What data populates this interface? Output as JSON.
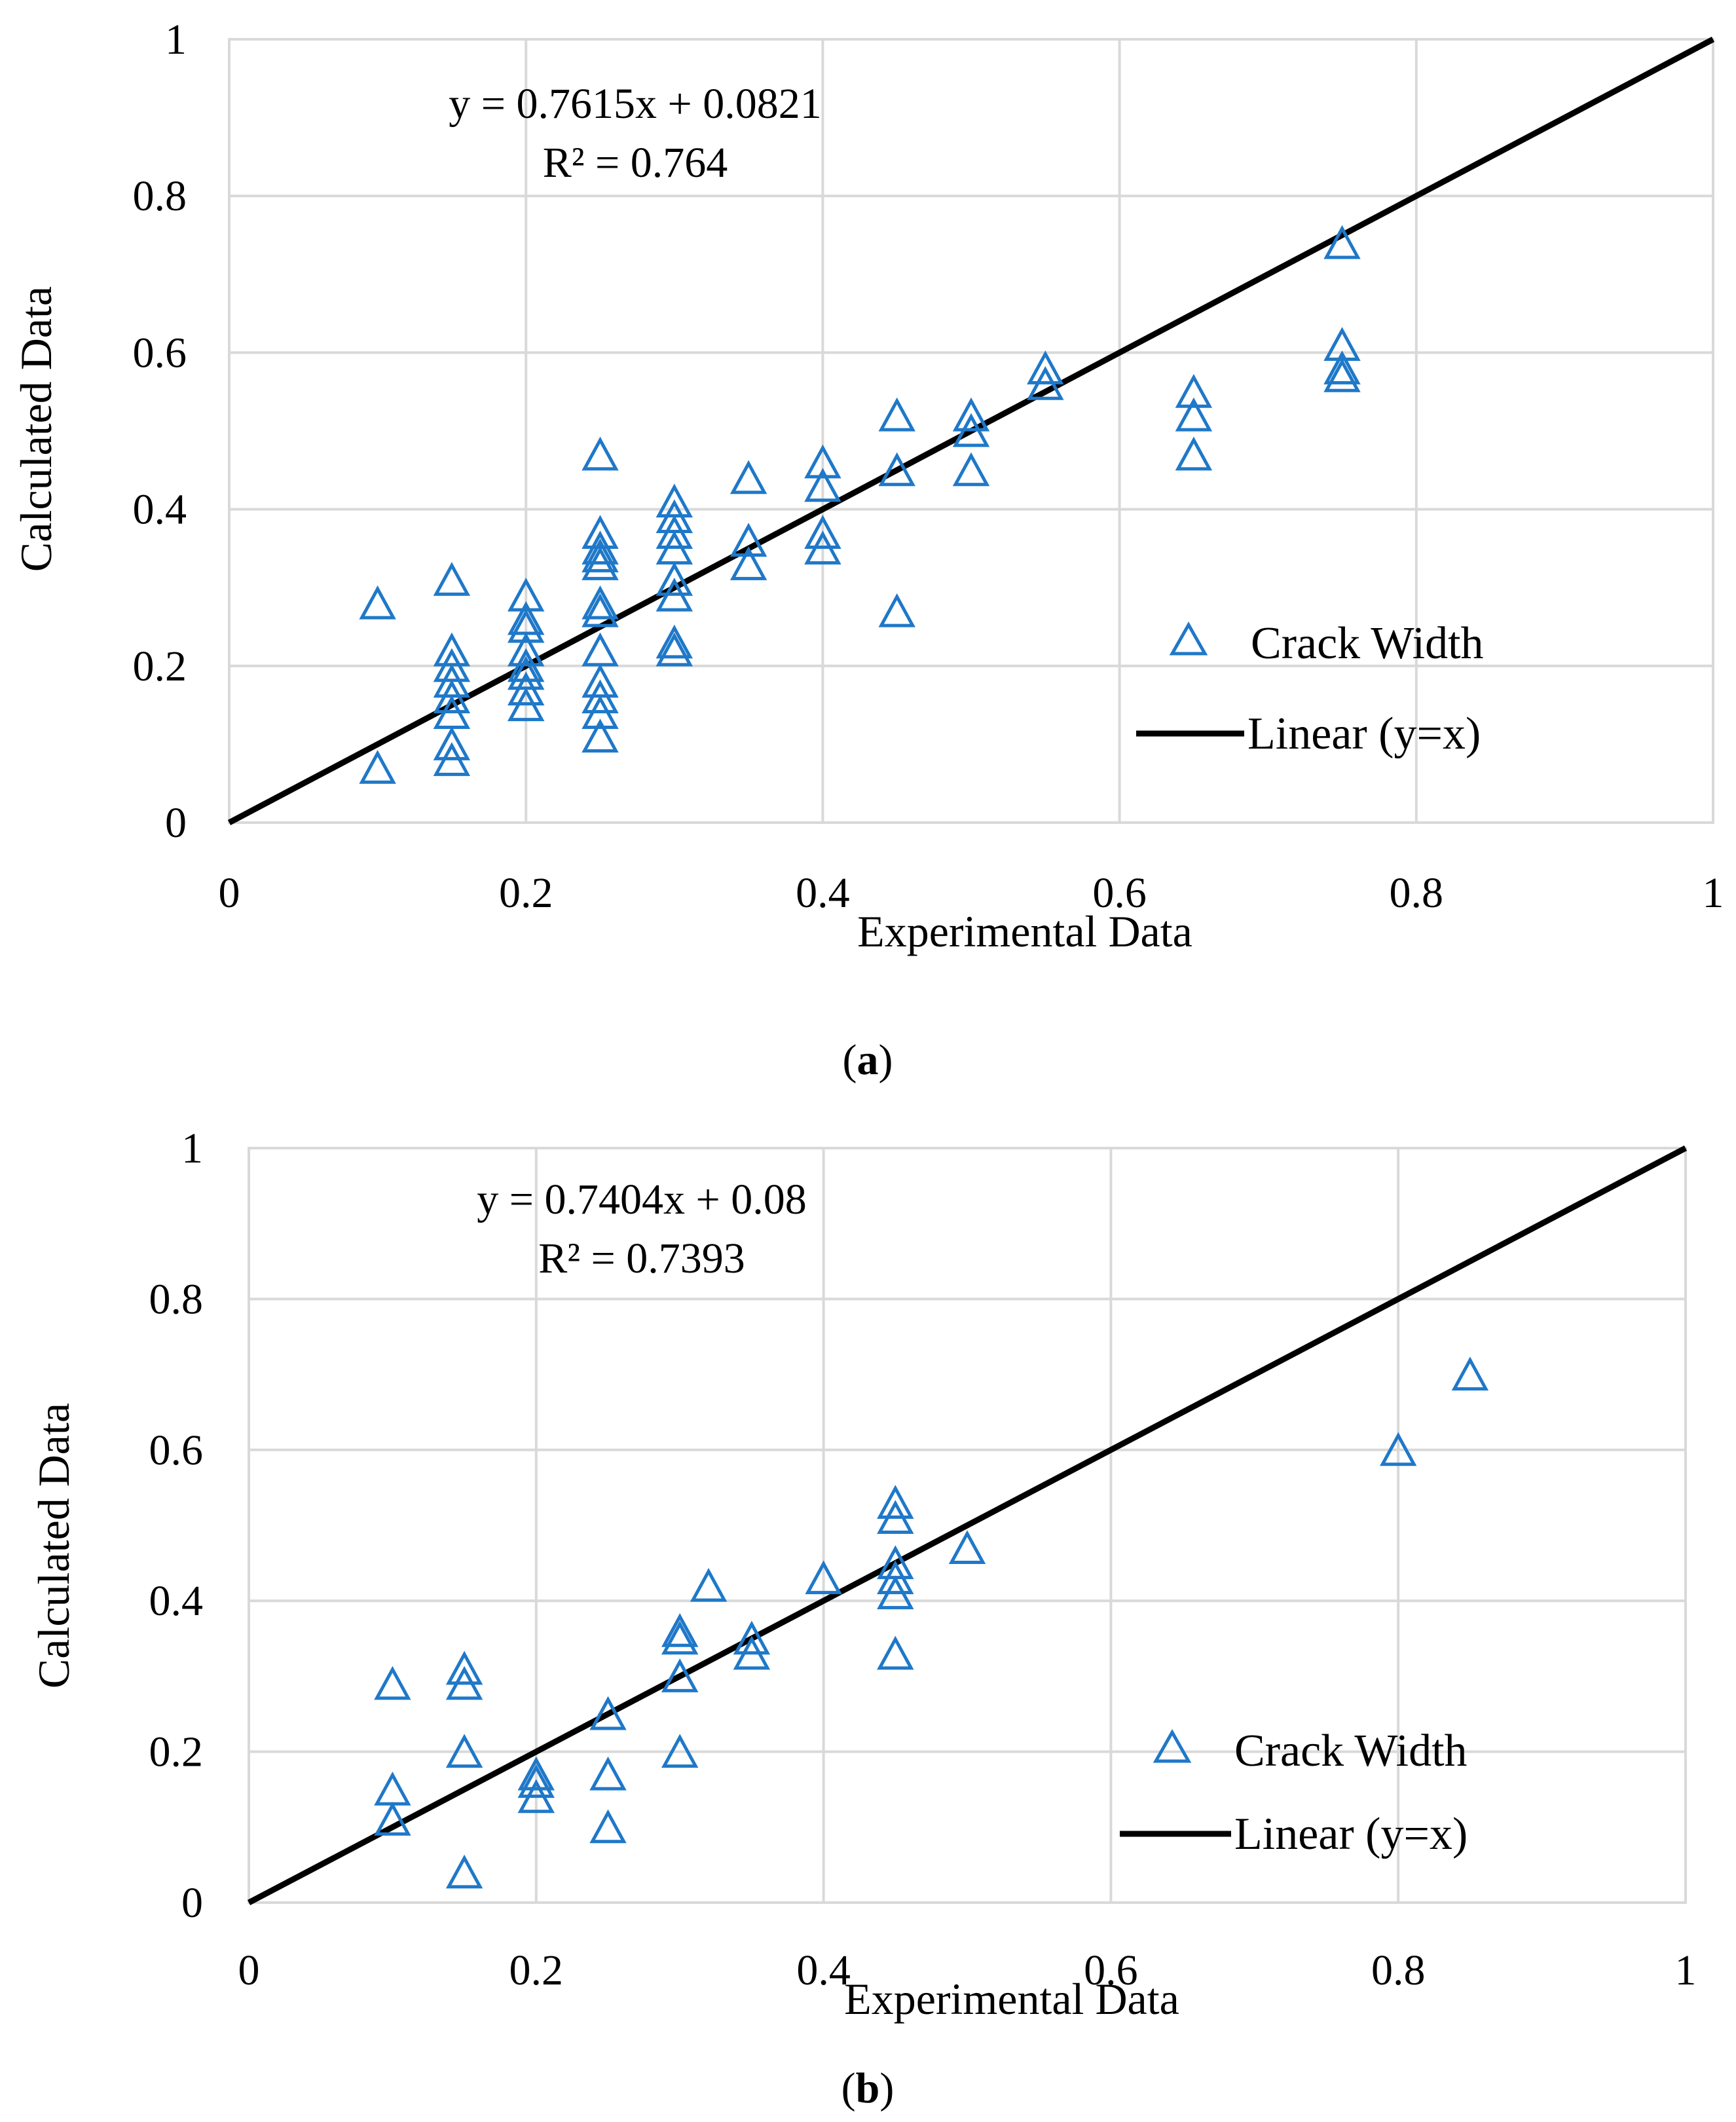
{
  "chart_data": [
    {
      "panel_label": "a",
      "type": "scatter",
      "xlabel": "Experimental Data",
      "ylabel": "Calculated Data",
      "xlim": [
        0,
        1
      ],
      "ylim": [
        0,
        1
      ],
      "xticks": [
        "0",
        "0.2",
        "0.4",
        "0.6",
        "0.8",
        "1"
      ],
      "yticks": [
        "0",
        "0.2",
        "0.4",
        "0.6",
        "0.8",
        "1"
      ],
      "grid": true,
      "annotation": {
        "equation": "y = 0.7615x + 0.0821",
        "r_squared": "R² = 0.764"
      },
      "legend": {
        "position": "bottom-right",
        "scatter_label": "Crack Width",
        "line_label": "Linear (y=x)"
      },
      "line": {
        "name": "Linear (y=x)",
        "x": [
          0,
          1
        ],
        "y": [
          0,
          1
        ]
      },
      "series": [
        {
          "name": "Crack Width",
          "points": [
            [
              0.1,
              0.28
            ],
            [
              0.1,
              0.07
            ],
            [
              0.15,
              0.31
            ],
            [
              0.15,
              0.22
            ],
            [
              0.15,
              0.2
            ],
            [
              0.15,
              0.18
            ],
            [
              0.15,
              0.16
            ],
            [
              0.15,
              0.14
            ],
            [
              0.15,
              0.1
            ],
            [
              0.15,
              0.08
            ],
            [
              0.2,
              0.29
            ],
            [
              0.2,
              0.26
            ],
            [
              0.2,
              0.25
            ],
            [
              0.2,
              0.22
            ],
            [
              0.2,
              0.2
            ],
            [
              0.2,
              0.19
            ],
            [
              0.2,
              0.17
            ],
            [
              0.2,
              0.15
            ],
            [
              0.25,
              0.47
            ],
            [
              0.25,
              0.37
            ],
            [
              0.25,
              0.35
            ],
            [
              0.25,
              0.34
            ],
            [
              0.25,
              0.33
            ],
            [
              0.25,
              0.28
            ],
            [
              0.25,
              0.27
            ],
            [
              0.25,
              0.22
            ],
            [
              0.25,
              0.18
            ],
            [
              0.25,
              0.16
            ],
            [
              0.25,
              0.14
            ],
            [
              0.25,
              0.11
            ],
            [
              0.3,
              0.41
            ],
            [
              0.3,
              0.39
            ],
            [
              0.3,
              0.37
            ],
            [
              0.3,
              0.35
            ],
            [
              0.3,
              0.31
            ],
            [
              0.3,
              0.29
            ],
            [
              0.3,
              0.23
            ],
            [
              0.3,
              0.22
            ],
            [
              0.35,
              0.44
            ],
            [
              0.35,
              0.36
            ],
            [
              0.35,
              0.33
            ],
            [
              0.4,
              0.46
            ],
            [
              0.4,
              0.43
            ],
            [
              0.4,
              0.37
            ],
            [
              0.4,
              0.35
            ],
            [
              0.45,
              0.52
            ],
            [
              0.45,
              0.45
            ],
            [
              0.45,
              0.27
            ],
            [
              0.5,
              0.52
            ],
            [
              0.5,
              0.5
            ],
            [
              0.5,
              0.45
            ],
            [
              0.55,
              0.58
            ],
            [
              0.55,
              0.56
            ],
            [
              0.65,
              0.55
            ],
            [
              0.65,
              0.52
            ],
            [
              0.65,
              0.47
            ],
            [
              0.75,
              0.74
            ],
            [
              0.75,
              0.61
            ],
            [
              0.75,
              0.58
            ],
            [
              0.75,
              0.57
            ]
          ]
        }
      ]
    },
    {
      "panel_label": "b",
      "type": "scatter",
      "xlabel": "Experimental Data",
      "ylabel": "Calculated Data",
      "xlim": [
        0,
        1
      ],
      "ylim": [
        0,
        1
      ],
      "xticks": [
        "0",
        "0.2",
        "0.4",
        "0.6",
        "0.8",
        "1"
      ],
      "yticks": [
        "0",
        "0.2",
        "0.4",
        "0.6",
        "0.8",
        "1"
      ],
      "grid": true,
      "annotation": {
        "equation": "y = 0.7404x + 0.08",
        "r_squared": "R² = 0.7393"
      },
      "legend": {
        "position": "bottom-right",
        "scatter_label": "Crack Width",
        "line_label": "Linear (y=x)"
      },
      "line": {
        "name": "Linear (y=x)",
        "x": [
          0,
          1
        ],
        "y": [
          0,
          1
        ]
      },
      "series": [
        {
          "name": "Crack Width",
          "points": [
            [
              0.1,
              0.29
            ],
            [
              0.1,
              0.15
            ],
            [
              0.1,
              0.11
            ],
            [
              0.15,
              0.31
            ],
            [
              0.15,
              0.29
            ],
            [
              0.15,
              0.2
            ],
            [
              0.15,
              0.04
            ],
            [
              0.2,
              0.17
            ],
            [
              0.2,
              0.16
            ],
            [
              0.2,
              0.14
            ],
            [
              0.25,
              0.25
            ],
            [
              0.25,
              0.17
            ],
            [
              0.25,
              0.1
            ],
            [
              0.3,
              0.36
            ],
            [
              0.3,
              0.35
            ],
            [
              0.3,
              0.3
            ],
            [
              0.3,
              0.2
            ],
            [
              0.32,
              0.42
            ],
            [
              0.35,
              0.35
            ],
            [
              0.35,
              0.33
            ],
            [
              0.4,
              0.43
            ],
            [
              0.45,
              0.53
            ],
            [
              0.45,
              0.51
            ],
            [
              0.45,
              0.45
            ],
            [
              0.45,
              0.43
            ],
            [
              0.45,
              0.41
            ],
            [
              0.45,
              0.33
            ],
            [
              0.5,
              0.47
            ],
            [
              0.8,
              0.6
            ],
            [
              0.85,
              0.7
            ]
          ]
        }
      ]
    }
  ],
  "style": {
    "marker_color": "#1f78c8",
    "line_color": "#000000",
    "grid_color": "#d9d9d9"
  }
}
